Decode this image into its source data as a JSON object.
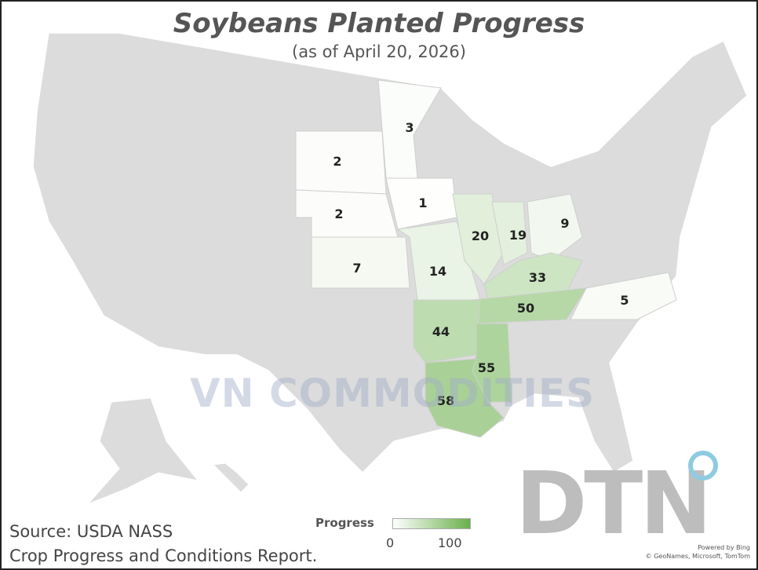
{
  "title": "Soybeans Planted Progress",
  "subtitle": "(as of April 20, 2026)",
  "source_line1": "Source: USDA NASS",
  "source_line2": "Crop Progress and Conditions Report.",
  "legend": {
    "title": "Progress",
    "min": "0",
    "max": "100",
    "color_min": "#ffffff",
    "color_max": "#6ab04c"
  },
  "attribution": {
    "line1": "Powered by Bing",
    "line2": "© GeoNames, Microsoft, TomTom"
  },
  "watermark": "VN COMMODITIES",
  "logo": "DTN",
  "colors": {
    "no_data": "#dcdcdc",
    "border": "#ffffff"
  },
  "states": [
    {
      "name": "South Dakota",
      "value": 2
    },
    {
      "name": "Nebraska",
      "value": 2
    },
    {
      "name": "Minnesota",
      "value": 3
    },
    {
      "name": "Iowa",
      "value": 1
    },
    {
      "name": "Kansas",
      "value": 7
    },
    {
      "name": "Missouri",
      "value": 14
    },
    {
      "name": "Illinois",
      "value": 20
    },
    {
      "name": "Indiana",
      "value": 19
    },
    {
      "name": "Ohio",
      "value": 9
    },
    {
      "name": "Kentucky",
      "value": 33
    },
    {
      "name": "Tennessee",
      "value": 50
    },
    {
      "name": "North Carolina",
      "value": 5
    },
    {
      "name": "Arkansas",
      "value": 44
    },
    {
      "name": "Mississippi",
      "value": 55
    },
    {
      "name": "Louisiana",
      "value": 58
    }
  ]
}
